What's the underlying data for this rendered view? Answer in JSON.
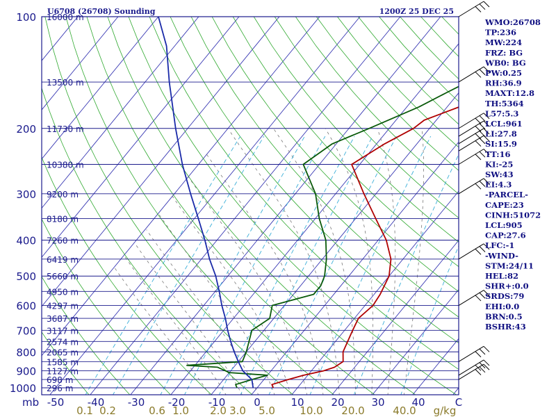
{
  "chart_data": {
    "type": "line",
    "title_left": "U6708 (26708) Sounding",
    "title_right": "1200Z 25 DEC 25",
    "y_axis": {
      "unit_label": "mb",
      "scale": "log",
      "range": [
        1000,
        100
      ],
      "pressure_ticks": [
        "100",
        "200",
        "300",
        "400",
        "500",
        "600",
        "700",
        "800",
        "900",
        "1000"
      ]
    },
    "x_axis": {
      "range": [
        -50,
        50
      ],
      "ticks": [
        {
          "t": -50,
          "label": "-50"
        },
        {
          "t": -40,
          "label": "-40"
        },
        {
          "t": -30,
          "label": "-30"
        },
        {
          "t": -20,
          "label": "-20"
        },
        {
          "t": -10,
          "label": "-10"
        },
        {
          "t": 0,
          "label": "0"
        },
        {
          "t": 10,
          "label": "10"
        },
        {
          "t": 20,
          "label": "20"
        },
        {
          "t": 30,
          "label": "30"
        },
        {
          "t": 40,
          "label": "40"
        },
        {
          "t": 50,
          "label": "C"
        }
      ]
    },
    "mixing_ratio": {
      "unit_label": "g/kg",
      "labels": [
        "0.1",
        "0.2",
        "0.6",
        "1.0",
        "2.0",
        "3.0",
        "5.0",
        "10.0",
        "20.0",
        "40.0"
      ]
    },
    "height_labels": [
      {
        "p": 100,
        "label": "16000 m"
      },
      {
        "p": 150,
        "label": "13500 m"
      },
      {
        "p": 200,
        "label": "11730 m"
      },
      {
        "p": 250,
        "label": "10380 m"
      },
      {
        "p": 300,
        "label": "9200 m"
      },
      {
        "p": 350,
        "label": "8180 m"
      },
      {
        "p": 400,
        "label": "7260 m"
      },
      {
        "p": 450,
        "label": "6419 m"
      },
      {
        "p": 500,
        "label": "5660 m"
      },
      {
        "p": 550,
        "label": "4950 m"
      },
      {
        "p": 600,
        "label": "4297 m"
      },
      {
        "p": 650,
        "label": "3687 m"
      },
      {
        "p": 700,
        "label": "3117 m"
      },
      {
        "p": 750,
        "label": "2574 m"
      },
      {
        "p": 800,
        "label": "2065 m"
      },
      {
        "p": 850,
        "label": "1585 m"
      },
      {
        "p": 900,
        "label": "1127 m"
      },
      {
        "p": 950,
        "label": "698 m"
      },
      {
        "p": 1000,
        "label": "296 m"
      }
    ],
    "series": [
      {
        "color": "#b00000",
        "points": [
          [
            1000,
            4
          ],
          [
            980,
            3
          ],
          [
            950,
            6
          ],
          [
            925,
            9
          ],
          [
            900,
            13
          ],
          [
            880,
            15
          ],
          [
            850,
            16
          ],
          [
            800,
            14
          ],
          [
            700,
            12
          ],
          [
            650,
            11
          ],
          [
            600,
            12
          ],
          [
            560,
            11.5
          ],
          [
            500,
            10
          ],
          [
            450,
            7
          ],
          [
            400,
            2
          ],
          [
            350,
            -5
          ],
          [
            300,
            -13
          ],
          [
            250,
            -22
          ],
          [
            220,
            -18
          ],
          [
            200,
            -14
          ],
          [
            190,
            -13
          ],
          [
            175,
            -7
          ],
          [
            160,
            -4
          ],
          [
            150,
            -1
          ],
          [
            135,
            2
          ],
          [
            120,
            6
          ],
          [
            110,
            10
          ],
          [
            100,
            15
          ]
        ]
      },
      {
        "color": "#0a5a0a",
        "points": [
          [
            1000,
            -5
          ],
          [
            980,
            -6
          ],
          [
            950,
            -3
          ],
          [
            925,
            0
          ],
          [
            910,
            -10
          ],
          [
            880,
            -14
          ],
          [
            870,
            -22
          ],
          [
            850,
            -9
          ],
          [
            800,
            -10
          ],
          [
            700,
            -13
          ],
          [
            650,
            -11
          ],
          [
            600,
            -13
          ],
          [
            560,
            -5
          ],
          [
            530,
            -5
          ],
          [
            500,
            -6
          ],
          [
            450,
            -9
          ],
          [
            400,
            -13
          ],
          [
            350,
            -19
          ],
          [
            300,
            -25
          ],
          [
            250,
            -34
          ],
          [
            220,
            -31
          ],
          [
            200,
            -25
          ],
          [
            175,
            -17
          ],
          [
            160,
            -13
          ],
          [
            150,
            -10
          ],
          [
            135,
            -6
          ],
          [
            120,
            -2
          ],
          [
            110,
            2
          ],
          [
            100,
            6
          ]
        ]
      },
      {
        "color": "#1a2aa8",
        "points": [
          [
            1000,
            -1
          ],
          [
            950,
            -3
          ],
          [
            900,
            -7
          ],
          [
            850,
            -10
          ],
          [
            800,
            -13
          ],
          [
            750,
            -16
          ],
          [
            700,
            -19
          ],
          [
            650,
            -22
          ],
          [
            600,
            -25.5
          ],
          [
            550,
            -29
          ],
          [
            500,
            -33
          ],
          [
            450,
            -38
          ],
          [
            400,
            -43
          ],
          [
            350,
            -49
          ],
          [
            300,
            -56
          ],
          [
            250,
            -64
          ],
          [
            200,
            -73
          ],
          [
            150,
            -84
          ],
          [
            120,
            -92
          ],
          [
            100,
            -100
          ]
        ]
      }
    ]
  },
  "indices": [
    "WMO:26708",
    "TP:236",
    "MW:224",
    "FRZ: BG",
    "WB0: BG",
    "PW:0.25",
    "RH:36.9",
    "MAXT:12.8",
    "TH:5364",
    "L57:5.3",
    "LCL:961",
    "LI:27.8",
    "SI:15.9",
    "TT:16",
    "KI:-25",
    "SW:43",
    "EI:4.3",
    "-PARCEL-",
    "CAPE:23",
    "CINH:51072",
    "LCL:905",
    "CAP:27.6",
    "LFC:-1",
    "-WIND-",
    "STM:24/11",
    "HEL:82",
    "SHR+:0.0",
    "SRDS:79",
    "EHI:0.0",
    "BRN:0.5",
    "BSHR:43"
  ],
  "colors": {
    "frame": "#1a1a8c",
    "isobar": "#1a1a8c",
    "isotherm": "#3a3ab4",
    "dry_adiabat": "#2ea82e",
    "moist_adiabat": "#777777",
    "mixing_ratio": "#3aaed8",
    "temperature": "#b00000",
    "dewpoint": "#0a5a0a",
    "parcel": "#1a2aa8",
    "wind": "#000000"
  }
}
